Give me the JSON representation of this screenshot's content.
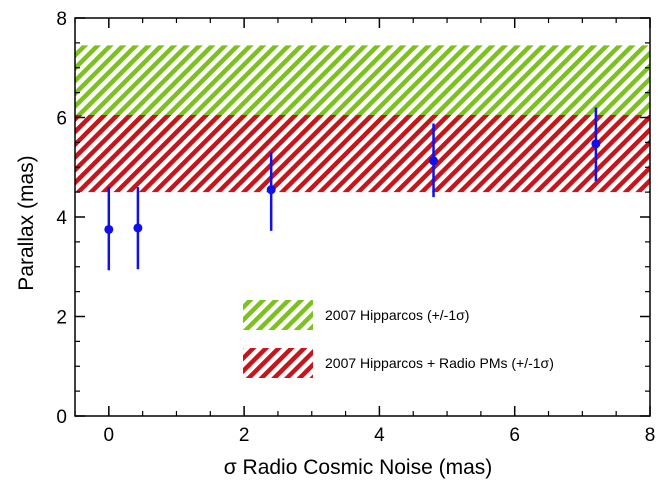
{
  "chart_data": {
    "type": "scatter",
    "xlabel": "σ Radio Cosmic Noise (mas)",
    "ylabel": "Parallax (mas)",
    "xlim": [
      -0.5,
      8
    ],
    "ylim": [
      0,
      8
    ],
    "xticks": [
      0,
      2,
      4,
      6,
      8
    ],
    "yticks": [
      0,
      2,
      4,
      6,
      8
    ],
    "xtick_labels": [
      "0",
      "2",
      "4",
      "6",
      "8"
    ],
    "ytick_labels": [
      "0",
      "2",
      "4",
      "6",
      "8"
    ],
    "grid": false,
    "bands": [
      {
        "label": "2007 Hipparcos (+/-1σ)",
        "ymin": 5.7,
        "ymax": 7.45,
        "color": "#7cc11d",
        "pattern": "diagonal-hatch"
      },
      {
        "label": "2007 Hipparcos + Radio PMs (+/-1σ)",
        "ymin": 4.5,
        "ymax": 6.05,
        "color": "#c8151b",
        "pattern": "diagonal-hatch"
      }
    ],
    "series": [
      {
        "color": "#1010e8",
        "marker": "circle-with-errorbar",
        "points": [
          {
            "x": 0.0,
            "y": 3.75,
            "ylo": 2.93,
            "yhi": 4.6
          },
          {
            "x": 0.43,
            "y": 3.78,
            "ylo": 2.95,
            "yhi": 4.6
          },
          {
            "x": 2.4,
            "y": 4.55,
            "ylo": 3.72,
            "yhi": 5.3
          },
          {
            "x": 4.8,
            "y": 5.13,
            "ylo": 4.4,
            "yhi": 5.88
          },
          {
            "x": 7.2,
            "y": 5.47,
            "ylo": 4.72,
            "yhi": 6.2
          }
        ]
      }
    ],
    "legend": {
      "placement": "bottom-right"
    }
  }
}
